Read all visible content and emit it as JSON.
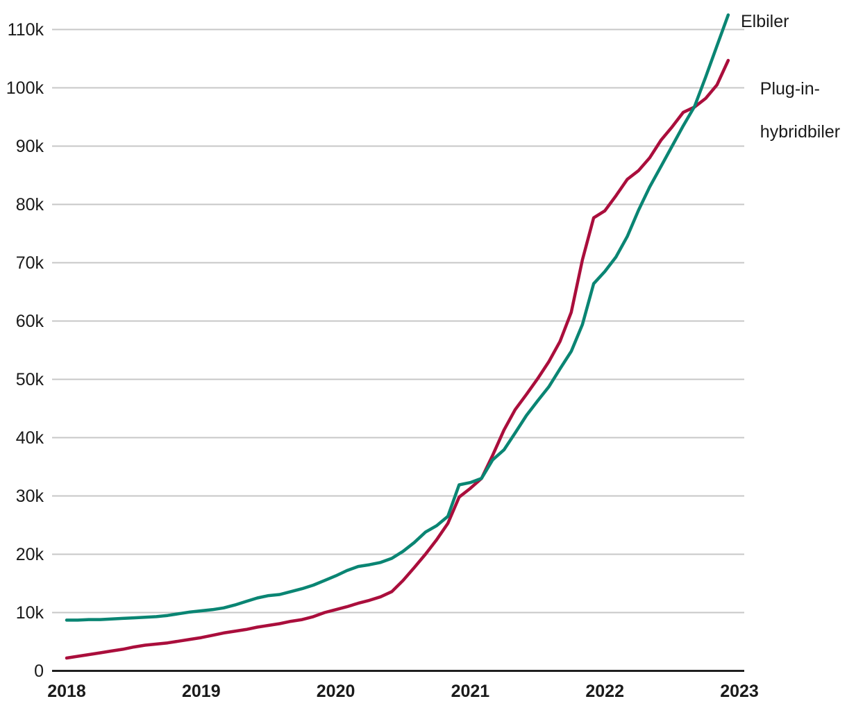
{
  "chart_data": {
    "type": "line",
    "title": "",
    "description_visible_text_only": "",
    "x_axis": {
      "tick_labels": [
        "2018",
        "2019",
        "2020",
        "2021",
        "2022",
        "2023"
      ],
      "tick_values": [
        2018,
        2019,
        2020,
        2021,
        2022,
        2023
      ],
      "range": [
        2018,
        2023.05
      ],
      "grid": false
    },
    "y_axis": {
      "tick_labels": [
        "0",
        "10k",
        "20k",
        "30k",
        "40k",
        "50k",
        "60k",
        "70k",
        "80k",
        "90k",
        "100k",
        "110k"
      ],
      "tick_values": [
        0,
        10000,
        20000,
        30000,
        40000,
        50000,
        60000,
        70000,
        80000,
        90000,
        100000,
        110000
      ],
      "range": [
        0,
        115000
      ],
      "grid": true
    },
    "x_monthly": {
      "start_year": 2018,
      "start_month": 1,
      "points": 60
    },
    "legend_position": "right-of-line-ends",
    "series": [
      {
        "name": "Elbiler",
        "label_lines": [
          "Elbiler"
        ],
        "color": "#0A8573",
        "values": [
          8700,
          8700,
          8800,
          8800,
          8900,
          9000,
          9100,
          9200,
          9300,
          9500,
          9800,
          10100,
          10300,
          10500,
          10800,
          11300,
          11900,
          12500,
          12900,
          13100,
          13600,
          14100,
          14700,
          15500,
          16300,
          17200,
          17900,
          18200,
          18600,
          19300,
          20500,
          22000,
          23800,
          24900,
          26500,
          31900,
          32300,
          33000,
          36200,
          37900,
          40800,
          43800,
          46300,
          48700,
          51800,
          54800,
          59400,
          66400,
          68500,
          71000,
          74500,
          79000,
          83000,
          86500,
          90000,
          93500,
          96800,
          101900,
          107200,
          112500
        ]
      },
      {
        "name": "Plug-in-hybridbiler",
        "label_lines": [
          "Plug-in-",
          "hybridbiler"
        ],
        "color": "#AA0E3C",
        "values": [
          2200,
          2500,
          2800,
          3100,
          3400,
          3700,
          4100,
          4400,
          4600,
          4800,
          5100,
          5400,
          5700,
          6100,
          6500,
          6800,
          7100,
          7500,
          7800,
          8100,
          8500,
          8800,
          9300,
          10000,
          10500,
          11000,
          11600,
          12100,
          12700,
          13600,
          15500,
          17700,
          20000,
          22500,
          25300,
          29800,
          31300,
          33000,
          37000,
          41300,
          44800,
          47400,
          50100,
          53000,
          56500,
          61500,
          70500,
          77700,
          78900,
          81500,
          84300,
          85800,
          88000,
          91000,
          93300,
          95800,
          96700,
          98200,
          100500,
          104700
        ]
      }
    ],
    "style": {
      "grid_color": "#c7c7c7",
      "zero_axis_color": "#1f1f1f",
      "tick_label_color": "#1a1a1a",
      "line_width": 4.5
    }
  },
  "legend": {
    "elbiler_label": "Elbiler",
    "phev_line1": "Plug-in-",
    "phev_line2": "hybridbiler"
  }
}
